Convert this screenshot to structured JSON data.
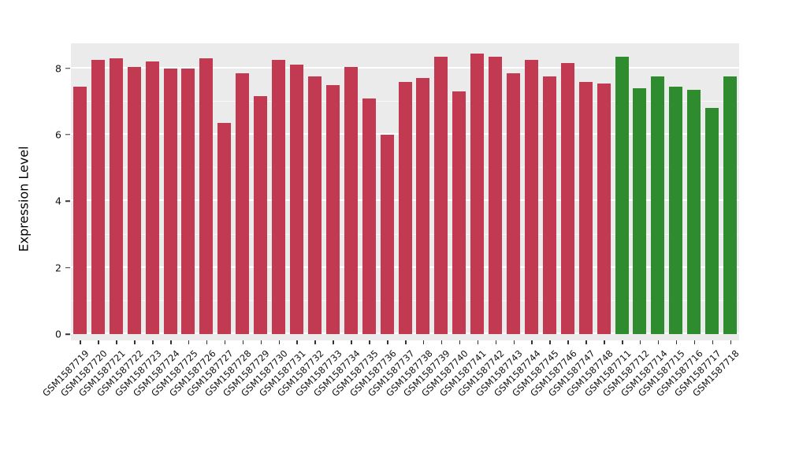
{
  "chart_data": {
    "type": "bar",
    "title": "",
    "xlabel": "",
    "ylabel": "Expression Level",
    "ylim": [
      0,
      8.75
    ],
    "yticks": [
      0,
      2,
      4,
      6,
      8
    ],
    "minor_yticks": [
      1,
      3,
      5,
      7
    ],
    "grid": "on",
    "legend": "none",
    "panel_bg": "#EBEBEB",
    "grid_color": "#FFFFFF",
    "axis_text_color": "#111111",
    "groups": [
      {
        "name": "group-red",
        "color": "#C23952"
      },
      {
        "name": "group-green",
        "color": "#2E8B2E"
      }
    ],
    "bars": [
      {
        "label": "GSM1587719",
        "value": 7.45,
        "group": 0
      },
      {
        "label": "GSM1587720",
        "value": 8.25,
        "group": 0
      },
      {
        "label": "GSM1587721",
        "value": 8.3,
        "group": 0
      },
      {
        "label": "GSM1587722",
        "value": 8.05,
        "group": 0
      },
      {
        "label": "GSM1587723",
        "value": 8.2,
        "group": 0
      },
      {
        "label": "GSM1587724",
        "value": 8.0,
        "group": 0
      },
      {
        "label": "GSM1587725",
        "value": 8.0,
        "group": 0
      },
      {
        "label": "GSM1587726",
        "value": 8.3,
        "group": 0
      },
      {
        "label": "GSM1587727",
        "value": 6.35,
        "group": 0
      },
      {
        "label": "GSM1587728",
        "value": 7.85,
        "group": 0
      },
      {
        "label": "GSM1587729",
        "value": 7.15,
        "group": 0
      },
      {
        "label": "GSM1587730",
        "value": 8.25,
        "group": 0
      },
      {
        "label": "GSM1587731",
        "value": 8.1,
        "group": 0
      },
      {
        "label": "GSM1587732",
        "value": 7.75,
        "group": 0
      },
      {
        "label": "GSM1587733",
        "value": 7.5,
        "group": 0
      },
      {
        "label": "GSM1587734",
        "value": 8.05,
        "group": 0
      },
      {
        "label": "GSM1587735",
        "value": 7.1,
        "group": 0
      },
      {
        "label": "GSM1587736",
        "value": 6.0,
        "group": 0
      },
      {
        "label": "GSM1587737",
        "value": 7.6,
        "group": 0
      },
      {
        "label": "GSM1587738",
        "value": 7.7,
        "group": 0
      },
      {
        "label": "GSM1587739",
        "value": 8.35,
        "group": 0
      },
      {
        "label": "GSM1587740",
        "value": 7.3,
        "group": 0
      },
      {
        "label": "GSM1587741",
        "value": 8.45,
        "group": 0
      },
      {
        "label": "GSM1587742",
        "value": 8.35,
        "group": 0
      },
      {
        "label": "GSM1587743",
        "value": 7.85,
        "group": 0
      },
      {
        "label": "GSM1587744",
        "value": 8.25,
        "group": 0
      },
      {
        "label": "GSM1587745",
        "value": 7.75,
        "group": 0
      },
      {
        "label": "GSM1587746",
        "value": 8.15,
        "group": 0
      },
      {
        "label": "GSM1587747",
        "value": 7.6,
        "group": 0
      },
      {
        "label": "GSM1587748",
        "value": 7.55,
        "group": 0
      },
      {
        "label": "GSM1587711",
        "value": 8.35,
        "group": 1
      },
      {
        "label": "GSM1587712",
        "value": 7.4,
        "group": 1
      },
      {
        "label": "GSM1587714",
        "value": 7.75,
        "group": 1
      },
      {
        "label": "GSM1587715",
        "value": 7.45,
        "group": 1
      },
      {
        "label": "GSM1587716",
        "value": 7.35,
        "group": 1
      },
      {
        "label": "GSM1587717",
        "value": 6.8,
        "group": 1
      },
      {
        "label": "GSM1587718",
        "value": 7.75,
        "group": 1
      }
    ]
  }
}
